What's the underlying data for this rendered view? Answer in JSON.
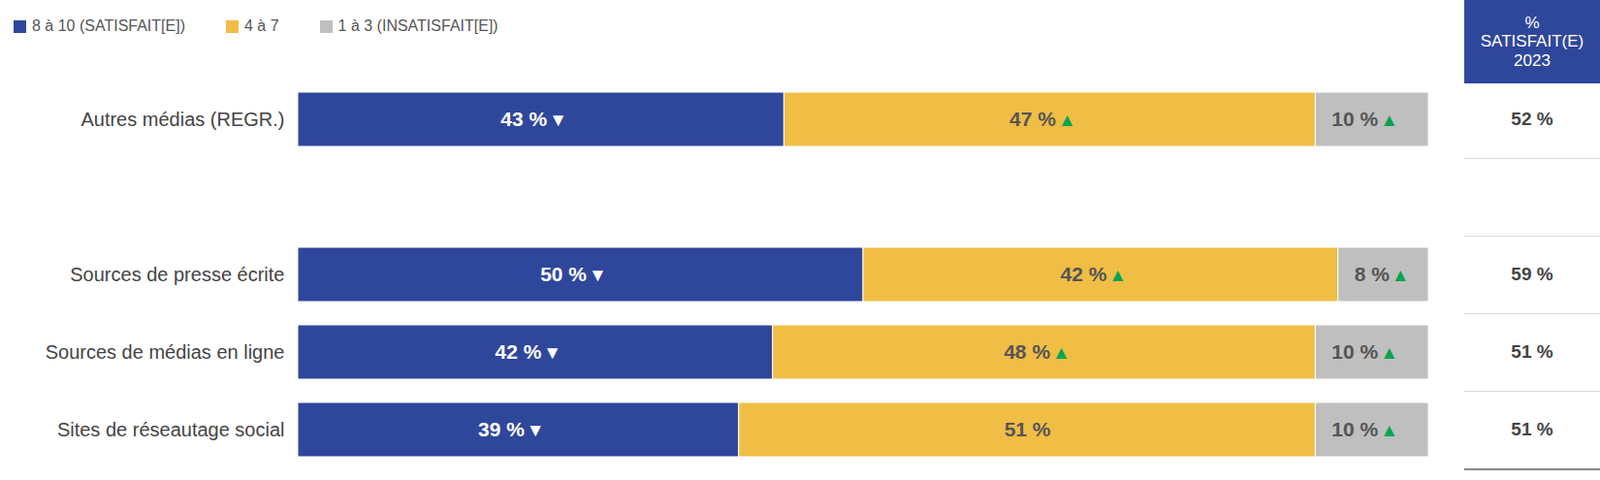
{
  "chart_data": {
    "type": "bar",
    "orientation": "horizontal",
    "stacked": true,
    "data_labels": true,
    "tick_labels": "y",
    "legend": "top-left",
    "categories": [
      "Autres médias (REGR.)",
      null,
      "Sources de presse écrite",
      "Sources de médias en ligne",
      "Sites de réseautage social"
    ],
    "xlim": [
      0,
      100
    ],
    "series": [
      {
        "name": "8 à 10 (SATISFAIT[E])",
        "color": "#2f479b",
        "values": [
          43,
          null,
          50,
          42,
          39
        ],
        "value_labels": [
          "43 %",
          null,
          "50 %",
          "42 %",
          "39 %"
        ],
        "arrows": [
          "▼",
          null,
          "▼",
          "▼",
          "▼"
        ]
      },
      {
        "name": "4 à 7",
        "color": "#f0bd45",
        "values": [
          47,
          null,
          42,
          48,
          51
        ],
        "value_labels": [
          "47 %",
          null,
          "42 %",
          "48 %",
          "51 %"
        ],
        "arrows": [
          "▲",
          null,
          "▲",
          "▲",
          null
        ]
      },
      {
        "name": "1 à 3 (INSATISFAIT[E])",
        "color": "#bfbfbf",
        "values": [
          10,
          null,
          8,
          10,
          10
        ],
        "value_labels": [
          "10 %",
          null,
          "8 %",
          "10 %",
          "10 %"
        ],
        "arrows": [
          "▲",
          null,
          "▲",
          "▲",
          "▲"
        ]
      }
    ],
    "satisfied_2023": {
      "title": "% SATISFAIT(E) 2023",
      "values": [
        52,
        null,
        59,
        51,
        51
      ],
      "value_labels": [
        "52 %",
        null,
        "59 %",
        "51 %",
        "51 %"
      ]
    }
  }
}
